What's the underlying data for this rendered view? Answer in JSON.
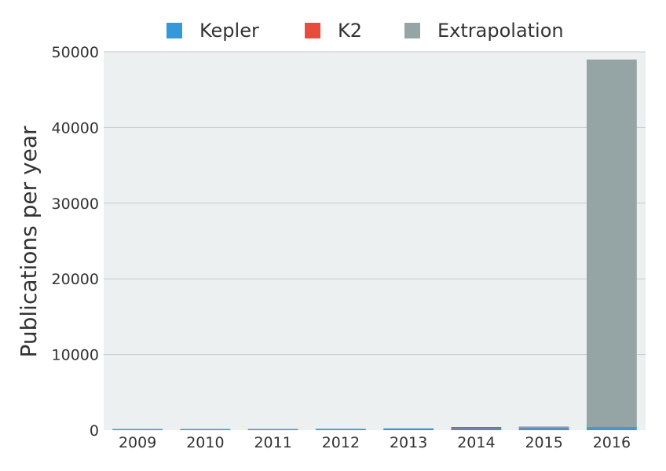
{
  "chart_data": {
    "type": "bar",
    "stacked": true,
    "title": "",
    "xlabel": "",
    "ylabel": "Publications per year",
    "ylim": [
      0,
      50000
    ],
    "yticks": [
      0,
      10000,
      20000,
      30000,
      40000,
      50000
    ],
    "grid": true,
    "legend_position": "top",
    "categories": [
      "2009",
      "2010",
      "2011",
      "2012",
      "2013",
      "2014",
      "2015",
      "2016"
    ],
    "series": [
      {
        "name": "Kepler",
        "color": "#3498db",
        "values": [
          30,
          90,
          150,
          180,
          240,
          260,
          280,
          300
        ]
      },
      {
        "name": "K2",
        "color": "#e74c3c",
        "values": [
          0,
          0,
          0,
          0,
          0,
          5,
          50,
          80
        ]
      },
      {
        "name": "Extrapolation",
        "color": "#95a5a6",
        "values": [
          0,
          0,
          0,
          0,
          0,
          0,
          120,
          48600
        ]
      }
    ]
  }
}
